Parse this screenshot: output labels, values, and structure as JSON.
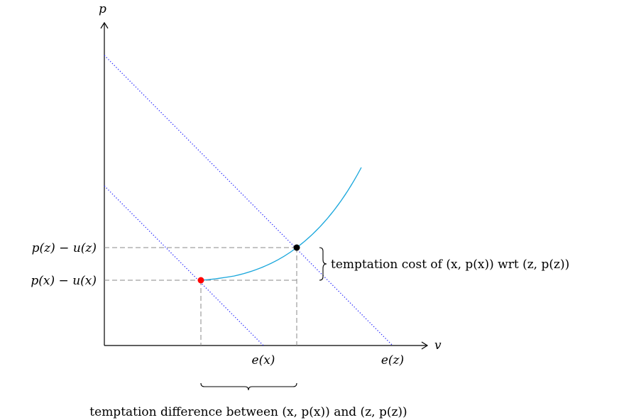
{
  "axes": {
    "x_label": "v",
    "y_label": "p"
  },
  "y_ticks": {
    "upper": "p(z) − u(z)",
    "lower": "p(x) − u(x)"
  },
  "x_ticks": {
    "ex": "e(x)",
    "ez": "e(z)"
  },
  "annotations": {
    "cost": "temptation cost of (x, p(x)) wrt (z, p(z))",
    "difference": "temptation difference between (x, p(x)) and (z, p(z))"
  },
  "colors": {
    "curve": "#1aa7dc",
    "dotted_lines": "#2b2bff",
    "point_x": "#ff0000",
    "point_z": "#000000",
    "dashed": "#888888"
  }
}
